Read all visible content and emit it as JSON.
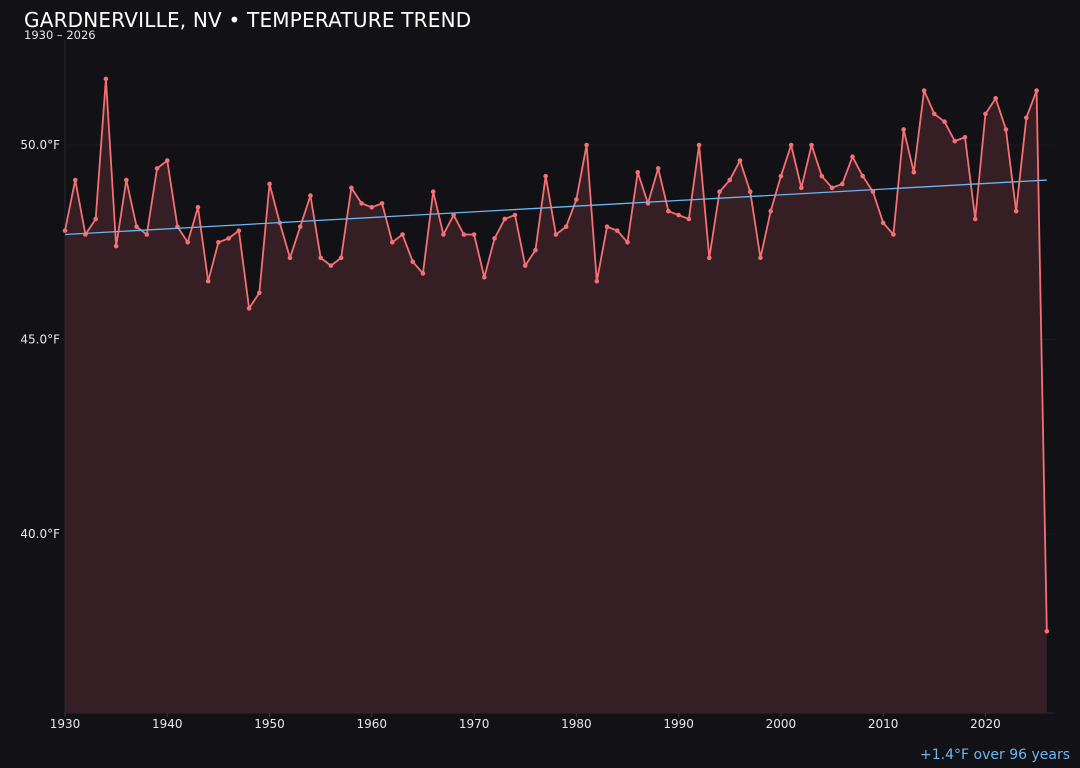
{
  "chart_data": {
    "type": "line",
    "title": "GARDNERVILLE, NV • TEMPERATURE TREND",
    "subtitle": "1930 – 2026",
    "xlabel": "",
    "ylabel": "",
    "xlim": [
      1930,
      2026.8
    ],
    "ylim": [
      35.4,
      52.7
    ],
    "y_ticks": [
      {
        "value": 40,
        "label": "40.0°F"
      },
      {
        "value": 45,
        "label": "45.0°F"
      },
      {
        "value": 50,
        "label": "50.0°F"
      }
    ],
    "x_ticks": [
      {
        "value": 1930,
        "label": "1930"
      },
      {
        "value": 1940,
        "label": "1940"
      },
      {
        "value": 1950,
        "label": "1950"
      },
      {
        "value": 1960,
        "label": "1960"
      },
      {
        "value": 1970,
        "label": "1970"
      },
      {
        "value": 1980,
        "label": "1980"
      },
      {
        "value": 1990,
        "label": "1990"
      },
      {
        "value": 2000,
        "label": "2000"
      },
      {
        "value": 2010,
        "label": "2010"
      },
      {
        "value": 2020,
        "label": "2020"
      }
    ],
    "grid": "horizontal",
    "series": [
      {
        "x": [
          1930,
          1931,
          1932,
          1933,
          1934,
          1935,
          1936,
          1937,
          1938,
          1939,
          1940,
          1941,
          1942,
          1943,
          1944,
          1945,
          1946,
          1947,
          1948,
          1949,
          1950,
          1951,
          1952,
          1953,
          1954,
          1955,
          1956,
          1957,
          1958,
          1959,
          1960,
          1961,
          1962,
          1963,
          1964,
          1965,
          1966,
          1967,
          1968,
          1969,
          1970,
          1971,
          1972,
          1973,
          1974,
          1975,
          1976,
          1977,
          1978,
          1979,
          1980,
          1981,
          1982,
          1983,
          1984,
          1985,
          1986,
          1987,
          1988,
          1989,
          1990,
          1991,
          1992,
          1993,
          1994,
          1995,
          1996,
          1997,
          1998,
          1999,
          2000,
          2001,
          2002,
          2003,
          2004,
          2005,
          2006,
          2007,
          2008,
          2009,
          2010,
          2011,
          2012,
          2013,
          2014,
          2015,
          2016,
          2017,
          2018,
          2019,
          2020,
          2021,
          2022,
          2023,
          2024,
          2025,
          2026
        ],
        "values": [
          47.8,
          49.1,
          47.7,
          48.1,
          51.7,
          47.4,
          49.1,
          47.9,
          47.7,
          49.4,
          49.6,
          47.9,
          47.5,
          48.4,
          46.5,
          47.5,
          47.6,
          47.8,
          45.8,
          46.2,
          49.0,
          48.0,
          47.1,
          47.9,
          48.7,
          47.1,
          46.9,
          47.1,
          48.9,
          48.5,
          48.4,
          48.5,
          47.5,
          47.7,
          47.0,
          46.7,
          48.8,
          47.7,
          48.2,
          47.7,
          47.7,
          46.6,
          47.6,
          48.1,
          48.2,
          46.9,
          47.3,
          49.2,
          47.7,
          47.9,
          48.6,
          50.0,
          46.5,
          47.9,
          47.8,
          47.5,
          49.3,
          48.5,
          49.4,
          48.3,
          48.2,
          48.1,
          50.0,
          47.1,
          48.8,
          49.1,
          49.6,
          48.8,
          47.1,
          48.3,
          49.2,
          50.0,
          48.9,
          50.0,
          49.2,
          48.9,
          49.0,
          49.7,
          49.2,
          48.8,
          48.0,
          47.7,
          50.4,
          49.3,
          51.4,
          50.8,
          50.6,
          50.1,
          50.2,
          48.1,
          50.8,
          51.2,
          50.4,
          48.3,
          50.7,
          51.4,
          37.5
        ]
      },
      {
        "type": "trend",
        "x": [
          1930,
          2026
        ],
        "values": [
          47.7,
          49.1
        ]
      }
    ]
  },
  "annotations": {
    "trend_note": "+1.4°F over 96 years"
  },
  "colors": {
    "background": "#121116",
    "series_line": "#f47073",
    "series_fill": "#351f25",
    "trend_line": "#6cb6f0",
    "grid": "#1f1c22",
    "tick_text": "#e8e8e8"
  }
}
